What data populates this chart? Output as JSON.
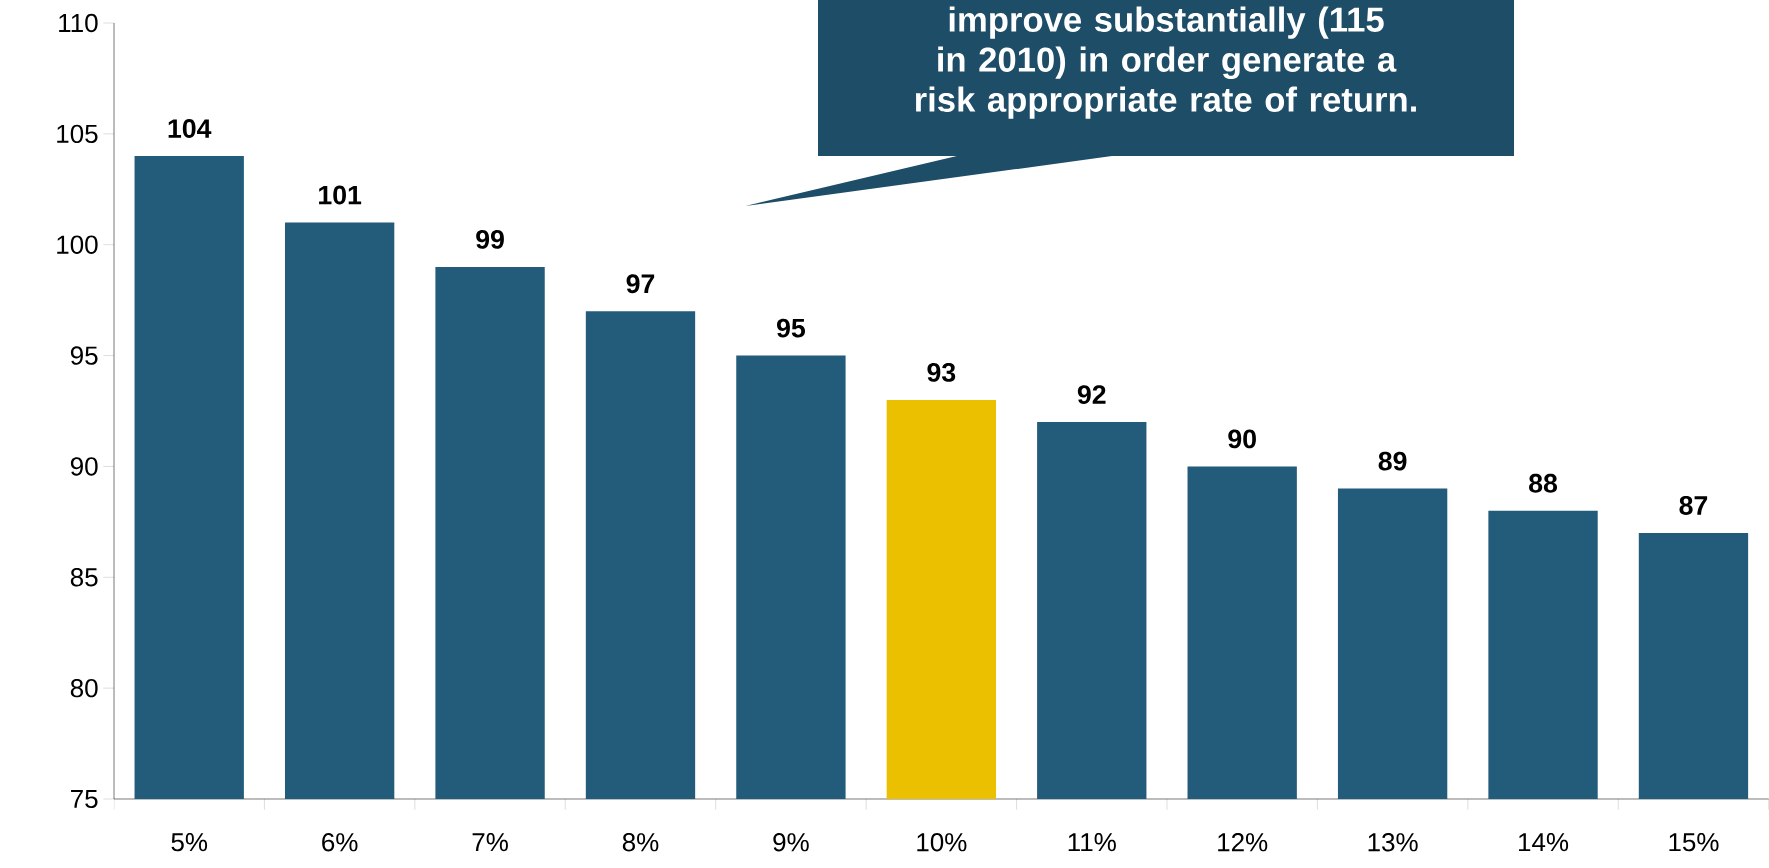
{
  "chart_data": {
    "type": "bar",
    "categories": [
      "5%",
      "6%",
      "7%",
      "8%",
      "9%",
      "10%",
      "11%",
      "12%",
      "13%",
      "14%",
      "15%"
    ],
    "values": [
      104,
      101,
      99,
      97,
      95,
      93,
      92,
      90,
      89,
      88,
      87
    ],
    "colors": [
      "#235b7a",
      "#235b7a",
      "#235b7a",
      "#235b7a",
      "#235b7a",
      "#ebc000",
      "#235b7a",
      "#235b7a",
      "#235b7a",
      "#235b7a",
      "#235b7a"
    ],
    "ylim": [
      75,
      110
    ],
    "yticks": [
      75,
      80,
      85,
      90,
      95,
      100,
      105,
      110
    ],
    "data_labels": true,
    "grid": false,
    "annotations": [
      "improve substantially (115 in 2010) in order generate a risk appropriate rate of return."
    ]
  }
}
